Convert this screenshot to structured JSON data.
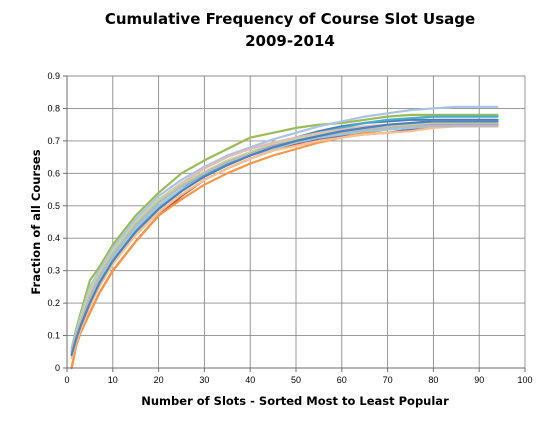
{
  "chart_data": {
    "type": "line",
    "title": "Cumulative Frequency of Course Slot Usage",
    "subtitle": "2009-2014",
    "xlabel": "Number of Slots - Sorted Most to Least Popular",
    "ylabel": "Fraction of all Courses",
    "xlim": [
      0,
      100
    ],
    "ylim": [
      0,
      0.9
    ],
    "x_ticks": [
      "0",
      "10",
      "20",
      "30",
      "40",
      "50",
      "60",
      "70",
      "80",
      "90",
      "100"
    ],
    "y_ticks": [
      "0",
      "0.1",
      "0.2",
      "0.3",
      "0.4",
      "0.5",
      "0.6",
      "0.7",
      "0.8",
      "0.9"
    ],
    "grid": true,
    "legend": "none",
    "x": [
      1,
      2,
      3,
      5,
      7,
      10,
      15,
      20,
      25,
      30,
      35,
      40,
      45,
      50,
      55,
      60,
      65,
      70,
      75,
      80,
      85,
      90,
      94
    ],
    "series": [
      {
        "color": "#4a7ebb",
        "values": [
          0.04,
          0.09,
          0.13,
          0.2,
          0.26,
          0.33,
          0.42,
          0.49,
          0.55,
          0.6,
          0.635,
          0.665,
          0.69,
          0.71,
          0.73,
          0.745,
          0.755,
          0.76,
          0.765,
          0.765,
          0.765,
          0.765,
          0.765
        ]
      },
      {
        "color": "#c0504d",
        "values": [
          0.0,
          0.07,
          0.11,
          0.17,
          0.23,
          0.3,
          0.39,
          0.47,
          0.53,
          0.58,
          0.615,
          0.645,
          0.67,
          0.69,
          0.71,
          0.725,
          0.735,
          0.745,
          0.75,
          0.755,
          0.755,
          0.755,
          0.755
        ]
      },
      {
        "color": "#9bbb59",
        "values": [
          0.06,
          0.12,
          0.17,
          0.27,
          0.31,
          0.38,
          0.47,
          0.54,
          0.6,
          0.64,
          0.675,
          0.71,
          0.725,
          0.74,
          0.75,
          0.755,
          0.765,
          0.775,
          0.78,
          0.78,
          0.78,
          0.78,
          0.78
        ]
      },
      {
        "color": "#8064a2",
        "values": [
          0.05,
          0.1,
          0.14,
          0.22,
          0.27,
          0.35,
          0.44,
          0.51,
          0.56,
          0.6,
          0.635,
          0.66,
          0.68,
          0.695,
          0.705,
          0.715,
          0.72,
          0.725,
          0.735,
          0.745,
          0.75,
          0.75,
          0.75
        ]
      },
      {
        "color": "#4bacc6",
        "values": [
          0.04,
          0.09,
          0.13,
          0.21,
          0.27,
          0.34,
          0.43,
          0.5,
          0.55,
          0.595,
          0.63,
          0.66,
          0.685,
          0.705,
          0.725,
          0.74,
          0.755,
          0.765,
          0.77,
          0.775,
          0.775,
          0.775,
          0.775
        ]
      },
      {
        "color": "#f79646",
        "values": [
          0.0,
          0.07,
          0.11,
          0.17,
          0.23,
          0.3,
          0.39,
          0.47,
          0.52,
          0.565,
          0.6,
          0.63,
          0.655,
          0.675,
          0.695,
          0.71,
          0.725,
          0.735,
          0.745,
          0.75,
          0.755,
          0.755,
          0.755
        ]
      },
      {
        "color": "#a9c4e4",
        "values": [
          0.06,
          0.11,
          0.16,
          0.25,
          0.3,
          0.37,
          0.46,
          0.53,
          0.58,
          0.62,
          0.655,
          0.68,
          0.705,
          0.725,
          0.745,
          0.76,
          0.775,
          0.785,
          0.795,
          0.8,
          0.805,
          0.805,
          0.805
        ]
      },
      {
        "color": "#e6b9b8",
        "values": [
          0.05,
          0.1,
          0.15,
          0.23,
          0.29,
          0.36,
          0.45,
          0.52,
          0.57,
          0.615,
          0.65,
          0.675,
          0.695,
          0.71,
          0.725,
          0.735,
          0.745,
          0.75,
          0.755,
          0.76,
          0.76,
          0.76,
          0.76
        ]
      },
      {
        "color": "#c3d69b",
        "values": [
          0.05,
          0.1,
          0.15,
          0.24,
          0.29,
          0.36,
          0.45,
          0.52,
          0.565,
          0.605,
          0.64,
          0.665,
          0.69,
          0.705,
          0.72,
          0.73,
          0.74,
          0.745,
          0.75,
          0.755,
          0.755,
          0.755,
          0.755
        ]
      },
      {
        "color": "#b3a2c7",
        "values": [
          0.05,
          0.1,
          0.14,
          0.22,
          0.28,
          0.35,
          0.44,
          0.51,
          0.56,
          0.6,
          0.635,
          0.66,
          0.685,
          0.7,
          0.715,
          0.725,
          0.735,
          0.74,
          0.745,
          0.75,
          0.75,
          0.75,
          0.75
        ]
      },
      {
        "color": "#93cddd",
        "values": [
          0.04,
          0.09,
          0.14,
          0.21,
          0.27,
          0.34,
          0.43,
          0.5,
          0.55,
          0.59,
          0.625,
          0.655,
          0.675,
          0.695,
          0.71,
          0.72,
          0.73,
          0.735,
          0.74,
          0.745,
          0.745,
          0.745,
          0.745
        ]
      },
      {
        "color": "#fac090",
        "values": [
          0.03,
          0.08,
          0.12,
          0.19,
          0.25,
          0.32,
          0.41,
          0.48,
          0.535,
          0.58,
          0.615,
          0.645,
          0.67,
          0.685,
          0.7,
          0.71,
          0.72,
          0.725,
          0.73,
          0.74,
          0.745,
          0.745,
          0.745
        ]
      },
      {
        "color": "#b9b9b9",
        "values": [
          0.05,
          0.1,
          0.14,
          0.22,
          0.28,
          0.35,
          0.44,
          0.51,
          0.56,
          0.6,
          0.635,
          0.66,
          0.68,
          0.7,
          0.715,
          0.725,
          0.735,
          0.74,
          0.745,
          0.745,
          0.745,
          0.745,
          0.745
        ]
      },
      {
        "color": "#4f81bd",
        "values": [
          0.04,
          0.09,
          0.13,
          0.2,
          0.26,
          0.33,
          0.42,
          0.49,
          0.545,
          0.59,
          0.625,
          0.655,
          0.68,
          0.7,
          0.715,
          0.73,
          0.74,
          0.75,
          0.755,
          0.76,
          0.76,
          0.76,
          0.76
        ]
      }
    ]
  }
}
